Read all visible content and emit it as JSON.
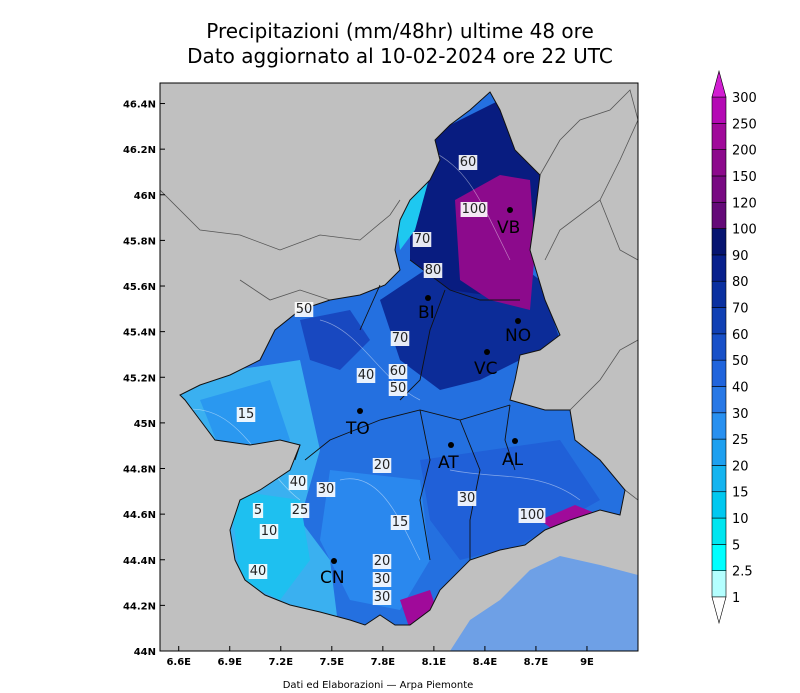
{
  "title": "Precipitazioni (mm/48hr) ultime 48 ore",
  "subtitle": "Dato aggiornato al 10-02-2024 ore 22 UTC",
  "map": {
    "xlim": [
      6.49,
      9.3
    ],
    "ylim": [
      44,
      46.49
    ],
    "xticks": [
      {
        "value": 6.6,
        "label": "6.6E"
      },
      {
        "value": 6.9,
        "label": "6.9E"
      },
      {
        "value": 7.2,
        "label": "7.2E"
      },
      {
        "value": 7.5,
        "label": "7.5E"
      },
      {
        "value": 7.8,
        "label": "7.8E"
      },
      {
        "value": 8.1,
        "label": "8.1E"
      },
      {
        "value": 8.4,
        "label": "8.4E"
      },
      {
        "value": 8.7,
        "label": "8.7E"
      },
      {
        "value": 9,
        "label": "9E"
      }
    ],
    "yticks": [
      {
        "value": 44,
        "label": "44N"
      },
      {
        "value": 44.2,
        "label": "44.2N"
      },
      {
        "value": 44.4,
        "label": "44.4N"
      },
      {
        "value": 44.6,
        "label": "44.6N"
      },
      {
        "value": 44.8,
        "label": "44.8N"
      },
      {
        "value": 45,
        "label": "45N"
      },
      {
        "value": 45.2,
        "label": "45.2N"
      },
      {
        "value": 45.4,
        "label": "45.4N"
      },
      {
        "value": 45.6,
        "label": "45.6N"
      },
      {
        "value": 45.8,
        "label": "45.8N"
      },
      {
        "value": 46,
        "label": "46N"
      },
      {
        "value": 46.2,
        "label": "46.2N"
      },
      {
        "value": 46.4,
        "label": "46.4N"
      }
    ],
    "provinces": [
      "VB",
      "BI",
      "NO",
      "VC",
      "TO",
      "AT",
      "AL",
      "CN"
    ],
    "contour_labels": [
      60,
      100,
      70,
      80,
      50,
      70,
      40,
      60,
      50,
      15,
      40,
      30,
      20,
      30,
      5,
      25,
      10,
      40,
      15,
      20,
      30,
      30,
      100
    ]
  },
  "colorbar": {
    "levels": [
      1,
      2.5,
      5,
      10,
      15,
      20,
      25,
      30,
      40,
      50,
      60,
      70,
      80,
      90,
      100,
      120,
      150,
      200,
      250,
      300
    ],
    "colors": [
      "#b4ffff",
      "#00ffff",
      "#00e6f0",
      "#00c8f0",
      "#14b4f0",
      "#1ea0f0",
      "#2890f0",
      "#2878e6",
      "#2064dc",
      "#1850c8",
      "#1040b4",
      "#0a30a0",
      "#08208c",
      "#061470",
      "#640a78",
      "#780a82",
      "#8c0a8c",
      "#a00a9a",
      "#b40ab4"
    ],
    "under_color": "#ffffff",
    "over_color": "#d21ed2"
  },
  "footer": "Dati ed Elaborazioni — Arpa Piemonte"
}
